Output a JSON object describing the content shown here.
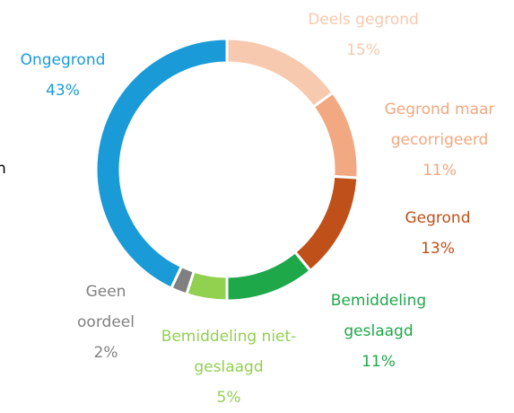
{
  "chart_data": {
    "type": "donut",
    "annotation": "n",
    "categories": [
      "Deels gegrond",
      "Gegrond maar gecorrigeerd",
      "Gegrond",
      "Bemiddeling geslaagd",
      "Bemiddeling niet-geslaagd",
      "Geen oordeel",
      "Ongegrond"
    ],
    "values": [
      15,
      11,
      13,
      11,
      5,
      2,
      43
    ],
    "value_labels": [
      "15%",
      "11%",
      "13%",
      "11%",
      "5%",
      "2%",
      "43%"
    ],
    "colors": [
      "#f7c9ae",
      "#f2a880",
      "#c0501a",
      "#1fa84a",
      "#92d050",
      "#808080",
      "#1a9bd7"
    ]
  }
}
